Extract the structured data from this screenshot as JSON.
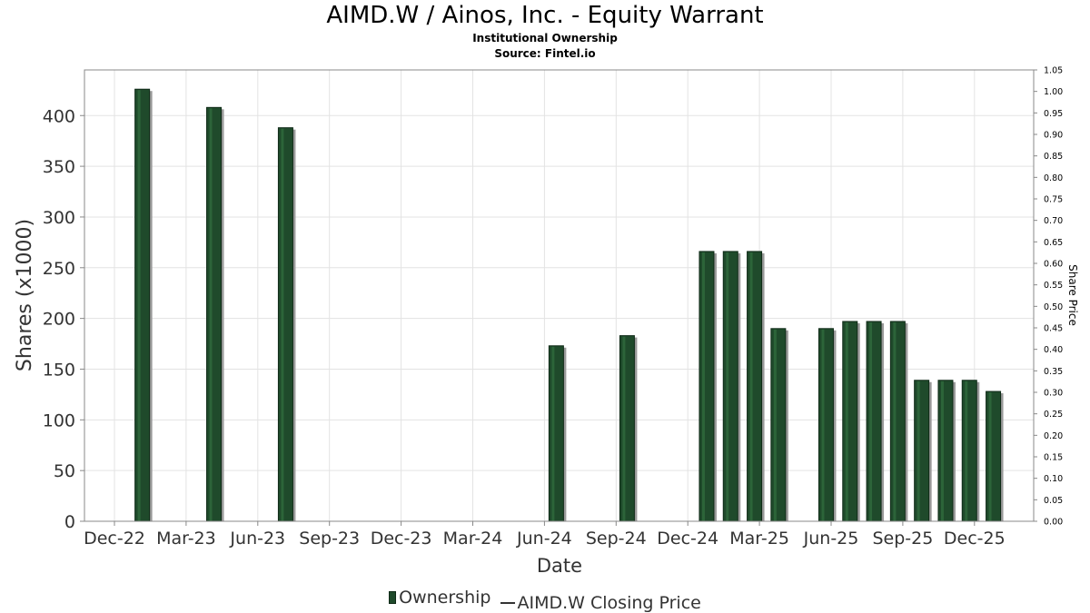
{
  "chart_data": {
    "type": "bar",
    "title": "AIMD.W / Ainos, Inc. - Equity Warrant",
    "subtitle": "Institutional Ownership",
    "source": "Source: Fintel.io",
    "xlabel": "Date",
    "ylabel": "Shares (x1000)",
    "y2label": "Share Price",
    "ylim": [
      0,
      445
    ],
    "y2lim": [
      0,
      1.05
    ],
    "yticks": [
      0,
      50,
      100,
      150,
      200,
      250,
      300,
      350,
      400
    ],
    "y2ticks": [
      "0.00",
      "0.05",
      "0.10",
      "0.15",
      "0.20",
      "0.25",
      "0.30",
      "0.35",
      "0.40",
      "0.45",
      "0.50",
      "0.55",
      "0.60",
      "0.65",
      "0.70",
      "0.75",
      "0.80",
      "0.85",
      "0.90",
      "0.95",
      "1.00",
      "1.05"
    ],
    "xticks": [
      "Dec-22",
      "Mar-23",
      "Jun-23",
      "Sep-23",
      "Dec-23",
      "Mar-24",
      "Jun-24",
      "Sep-24",
      "Dec-24",
      "Mar-25",
      "Jun-25",
      "Sep-25",
      "Dec-25"
    ],
    "grid": true,
    "legend_position": "bottom",
    "series": [
      {
        "name": "Ownership",
        "color": "#1f4a2b",
        "points": [
          {
            "x": "2023-01-06",
            "y": 426
          },
          {
            "x": "2023-04-06",
            "y": 408
          },
          {
            "x": "2023-07-06",
            "y": 388
          },
          {
            "x": "2024-06-16",
            "y": 173
          },
          {
            "x": "2024-09-15",
            "y": 183
          },
          {
            "x": "2024-12-25",
            "y": 266
          },
          {
            "x": "2025-01-25",
            "y": 266
          },
          {
            "x": "2025-02-25",
            "y": 266
          },
          {
            "x": "2025-03-25",
            "y": 190
          },
          {
            "x": "2025-05-25",
            "y": 190
          },
          {
            "x": "2025-06-25",
            "y": 197
          },
          {
            "x": "2025-07-25",
            "y": 197
          },
          {
            "x": "2025-08-25",
            "y": 197
          },
          {
            "x": "2025-09-25",
            "y": 139
          },
          {
            "x": "2025-10-25",
            "y": 139
          },
          {
            "x": "2025-11-25",
            "y": 139
          },
          {
            "x": "2025-12-25",
            "y": 128
          }
        ]
      },
      {
        "name": "AIMD.W Closing Price",
        "color": "#333333",
        "points": []
      }
    ]
  }
}
